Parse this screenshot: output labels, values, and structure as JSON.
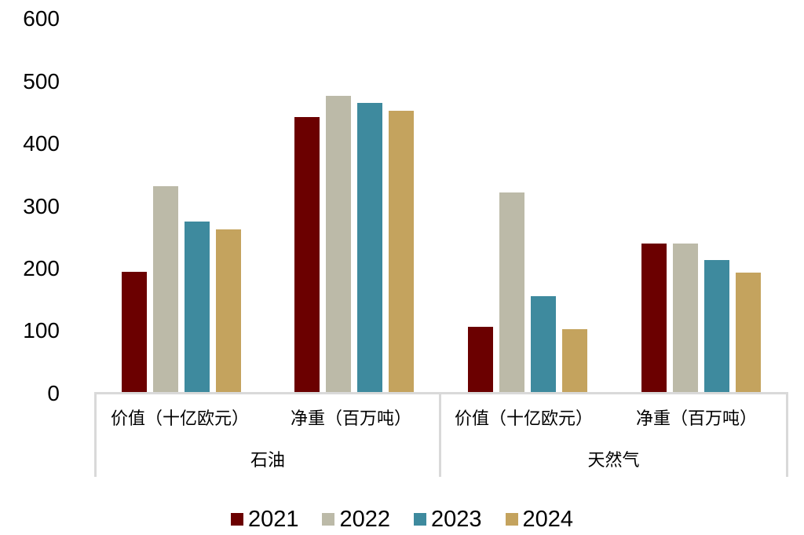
{
  "chart_data": {
    "type": "bar",
    "title": "",
    "xlabel": "",
    "ylabel": "",
    "ylim": [
      0,
      600
    ],
    "yticks": [
      0,
      100,
      200,
      300,
      400,
      500,
      600
    ],
    "grid": false,
    "legend_position": "bottom",
    "groups": [
      {
        "label": "石油",
        "categories": [
          "价值（十亿欧元）",
          "净重（百万吨）"
        ]
      },
      {
        "label": "天然气",
        "categories": [
          "价值（十亿欧元）",
          "净重（百万吨）"
        ]
      }
    ],
    "categories": [
      "石油 - 价值（十亿欧元）",
      "石油 - 净重（百万吨）",
      "天然气 - 价值（十亿欧元）",
      "天然气 - 净重（百万吨）"
    ],
    "series": [
      {
        "name": "2021",
        "color": "#6b0000",
        "values": [
          194,
          443,
          106,
          239
        ]
      },
      {
        "name": "2022",
        "color": "#bcbaa8",
        "values": [
          332,
          477,
          322,
          239
        ]
      },
      {
        "name": "2023",
        "color": "#3e8a9e",
        "values": [
          275,
          465,
          155,
          213
        ]
      },
      {
        "name": "2024",
        "color": "#c4a35e",
        "values": [
          262,
          453,
          102,
          193
        ]
      }
    ]
  },
  "labels": {
    "yticks": [
      "600",
      "500",
      "400",
      "300",
      "200",
      "100",
      "0"
    ],
    "cat_value": "价值（十亿欧元）",
    "cat_weight": "净重（百万吨）",
    "group_oil": "石油",
    "group_gas": "天然气",
    "legend": [
      "2021",
      "2022",
      "2023",
      "2024"
    ]
  }
}
